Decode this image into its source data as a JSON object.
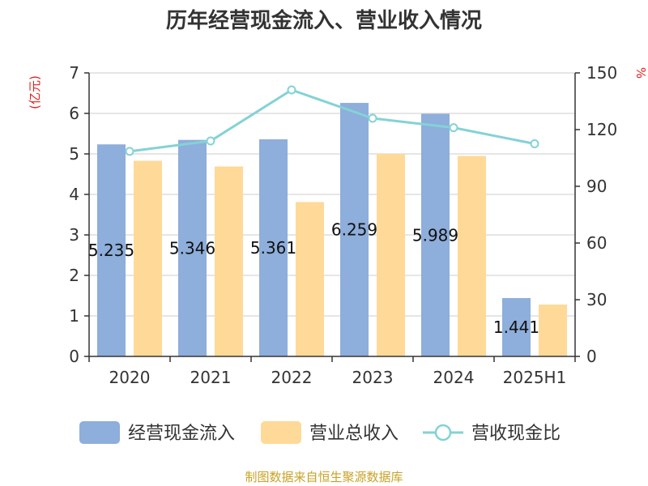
{
  "chart_data": {
    "type": "bar",
    "title": "历年经营现金流入、营业收入情况",
    "categories": [
      "2020",
      "2021",
      "2022",
      "2023",
      "2024",
      "2025H1"
    ],
    "left_axis": {
      "unit": "(亿元)",
      "ylim": [
        0,
        7
      ],
      "ticks": [
        "0",
        "1",
        "2",
        "3",
        "4",
        "5",
        "6",
        "7"
      ]
    },
    "right_axis": {
      "unit": "%",
      "ylim": [
        0,
        150
      ],
      "ticks": [
        "0",
        "30",
        "60",
        "90",
        "120",
        "150"
      ]
    },
    "series": [
      {
        "name": "经营现金流入",
        "type": "bar",
        "axis": "left",
        "color": "#8eaedb",
        "values": [
          5.235,
          5.346,
          5.361,
          6.259,
          5.989,
          1.441
        ],
        "labels": [
          "5.235",
          "5.346",
          "5.361",
          "6.259",
          "5.989",
          "1.441"
        ]
      },
      {
        "name": "营业总收入",
        "type": "bar",
        "axis": "left",
        "color": "#ffd998",
        "values": [
          4.83,
          4.69,
          3.81,
          5.0,
          4.95,
          1.28
        ]
      },
      {
        "name": "营收现金比",
        "type": "line",
        "axis": "right",
        "color": "#84d2d6",
        "values": [
          108.5,
          114.0,
          141.0,
          126.0,
          121.0,
          112.5
        ]
      }
    ],
    "grid": true,
    "legend": "bottom"
  },
  "footer": {
    "source": "制图数据来自恒生聚源数据库"
  }
}
